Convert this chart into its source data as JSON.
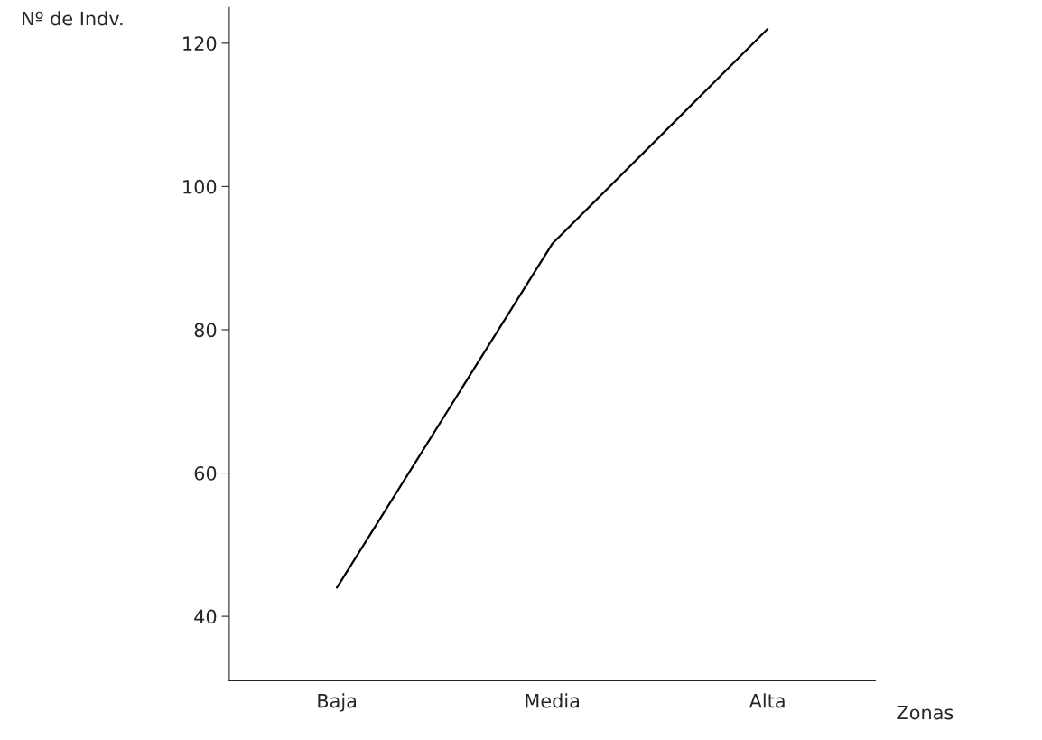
{
  "chart_data": {
    "type": "line",
    "xlabel": "Zonas",
    "ylabel": "Nº de Indv.",
    "categories": [
      "Baja",
      "Media",
      "Alta"
    ],
    "series": [
      {
        "color": "#000000",
        "values": [
          44,
          92,
          122
        ]
      }
    ],
    "ylim": [
      31,
      125
    ],
    "yticks": [
      40,
      60,
      80,
      100,
      120
    ],
    "grid": false,
    "marker": "none",
    "line_style": "solid"
  }
}
